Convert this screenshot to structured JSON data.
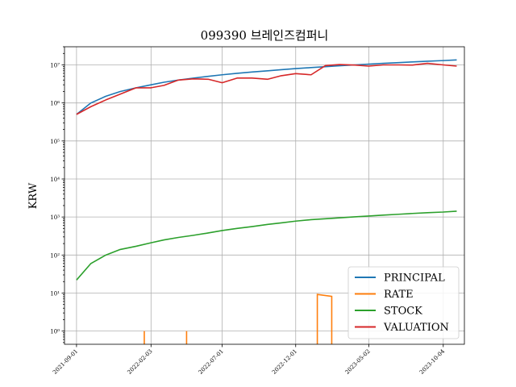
{
  "chart_data": {
    "type": "line",
    "title": "099390 브레인즈컴퍼니",
    "xlabel": "",
    "ylabel": "KRW",
    "yscale": "log",
    "ylim": [
      0.45,
      30000000
    ],
    "xlim": [
      "2021-08-07",
      "2023-11-17"
    ],
    "grid": true,
    "legend_position": "lower-right",
    "x_ticks": [
      "2021-09-01",
      "2022-02-03",
      "2022-07-01",
      "2022-12-01",
      "2023-05-02",
      "2023-10-04"
    ],
    "y_ticks": [
      {
        "value": 1,
        "label": "10⁰"
      },
      {
        "value": 10,
        "label": "10¹"
      },
      {
        "value": 100,
        "label": "10²"
      },
      {
        "value": 1000,
        "label": "10³"
      },
      {
        "value": 10000,
        "label": "10⁴"
      },
      {
        "value": 100000,
        "label": "10⁵"
      },
      {
        "value": 1000000,
        "label": "10⁶"
      },
      {
        "value": 10000000,
        "label": "10⁷"
      }
    ],
    "series": [
      {
        "name": "PRINCIPAL",
        "color": "#1f77b4",
        "x": [
          "2021-09-01",
          "2021-10-01",
          "2021-11-01",
          "2021-12-01",
          "2022-01-03",
          "2022-02-03",
          "2022-03-02",
          "2022-04-01",
          "2022-05-02",
          "2022-06-02",
          "2022-07-01",
          "2022-08-01",
          "2022-09-01",
          "2022-10-04",
          "2022-11-01",
          "2022-12-01",
          "2023-01-02",
          "2023-02-01",
          "2023-03-02",
          "2023-04-03",
          "2023-05-02",
          "2023-06-01",
          "2023-07-03",
          "2023-08-01",
          "2023-09-01",
          "2023-10-04",
          "2023-11-01"
        ],
        "y": [
          500000,
          1000000,
          1500000,
          2000000,
          2500000,
          3000000,
          3500000,
          4000000,
          4500000,
          5000000,
          5500000,
          6000000,
          6500000,
          7000000,
          7500000,
          8000000,
          8500000,
          9000000,
          9500000,
          10000000,
          10500000,
          11000000,
          11500000,
          12000000,
          12500000,
          13000000,
          13500000
        ]
      },
      {
        "name": "RATE",
        "color": "#ff7f0e",
        "segments": [
          {
            "x": [
              "2022-01-20",
              "2022-01-20"
            ],
            "y": [
              0.45,
              1.0
            ]
          },
          {
            "x": [
              "2022-04-18",
              "2022-04-18"
            ],
            "y": [
              0.45,
              1.0
            ]
          },
          {
            "x": [
              "2023-01-15",
              "2023-01-15",
              "2023-02-14",
              "2023-02-14"
            ],
            "y": [
              0.45,
              9.2,
              8.2,
              0.45
            ]
          }
        ]
      },
      {
        "name": "STOCK",
        "color": "#2ca02c",
        "x": [
          "2021-09-01",
          "2021-10-01",
          "2021-11-01",
          "2021-12-01",
          "2022-01-03",
          "2022-02-03",
          "2022-03-02",
          "2022-04-01",
          "2022-05-02",
          "2022-06-02",
          "2022-07-01",
          "2022-08-01",
          "2022-09-01",
          "2022-10-04",
          "2022-11-01",
          "2022-12-01",
          "2023-01-02",
          "2023-02-01",
          "2023-03-02",
          "2023-04-03",
          "2023-05-02",
          "2023-06-01",
          "2023-07-03",
          "2023-08-01",
          "2023-09-01",
          "2023-10-04",
          "2023-11-01"
        ],
        "y": [
          22,
          60,
          100,
          140,
          170,
          210,
          250,
          290,
          330,
          380,
          440,
          500,
          560,
          640,
          700,
          780,
          850,
          900,
          950,
          1010,
          1060,
          1120,
          1180,
          1240,
          1300,
          1350,
          1420
        ]
      },
      {
        "name": "VALUATION",
        "color": "#d62728",
        "x": [
          "2021-09-01",
          "2021-10-01",
          "2021-11-01",
          "2021-12-01",
          "2022-01-03",
          "2022-02-03",
          "2022-03-02",
          "2022-04-01",
          "2022-05-02",
          "2022-06-02",
          "2022-07-01",
          "2022-08-01",
          "2022-09-01",
          "2022-10-04",
          "2022-11-01",
          "2022-12-01",
          "2023-01-02",
          "2023-02-01",
          "2023-03-02",
          "2023-04-03",
          "2023-05-02",
          "2023-06-01",
          "2023-07-03",
          "2023-08-01",
          "2023-09-01",
          "2023-10-04",
          "2023-11-01"
        ],
        "y": [
          500000,
          800000,
          1200000,
          1700000,
          2500000,
          2500000,
          2900000,
          4000000,
          4300000,
          4200000,
          3400000,
          4500000,
          4500000,
          4200000,
          5200000,
          5900000,
          5500000,
          9600000,
          10200000,
          9900000,
          9300000,
          10000000,
          10000000,
          9900000,
          11000000,
          10000000,
          9300000
        ]
      }
    ]
  }
}
